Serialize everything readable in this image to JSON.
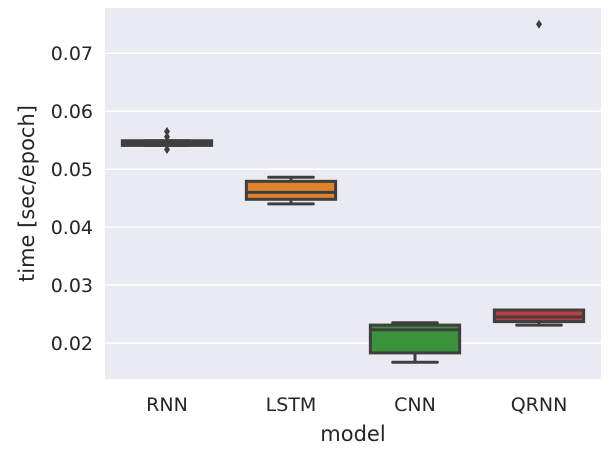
{
  "chart_data": {
    "type": "box",
    "xlabel": "model",
    "ylabel": "time [sec/epoch]",
    "ylim": [
      0.0138,
      0.0778
    ],
    "yticks": [
      0.02,
      0.03,
      0.04,
      0.05,
      0.06,
      0.07
    ],
    "ytick_labels": [
      "0.02",
      "0.03",
      "0.04",
      "0.05",
      "0.06",
      "0.07"
    ],
    "grid": true,
    "background": "#EAEAF2",
    "edge_color": "#3F3F3F",
    "categories": [
      "RNN",
      "LSTM",
      "CNN",
      "QRNN"
    ],
    "boxes": [
      {
        "category": "RNN",
        "color": "#3274A1",
        "whislo": 0.0541,
        "q1": 0.0541,
        "med": 0.0546,
        "q3": 0.0549,
        "whishi": 0.0549,
        "fliers": [
          0.0534,
          0.0556,
          0.0565
        ]
      },
      {
        "category": "LSTM",
        "color": "#E1812C",
        "whislo": 0.044,
        "q1": 0.0448,
        "med": 0.046,
        "q3": 0.0479,
        "whishi": 0.0486,
        "fliers": []
      },
      {
        "category": "CNN",
        "color": "#3A923A",
        "whislo": 0.0167,
        "q1": 0.0183,
        "med": 0.0223,
        "q3": 0.0231,
        "whishi": 0.0235,
        "fliers": []
      },
      {
        "category": "QRNN",
        "color": "#C03D3E",
        "whislo": 0.0231,
        "q1": 0.0237,
        "med": 0.0245,
        "q3": 0.0257,
        "whishi": 0.0257,
        "fliers": [
          0.075
        ]
      }
    ]
  }
}
